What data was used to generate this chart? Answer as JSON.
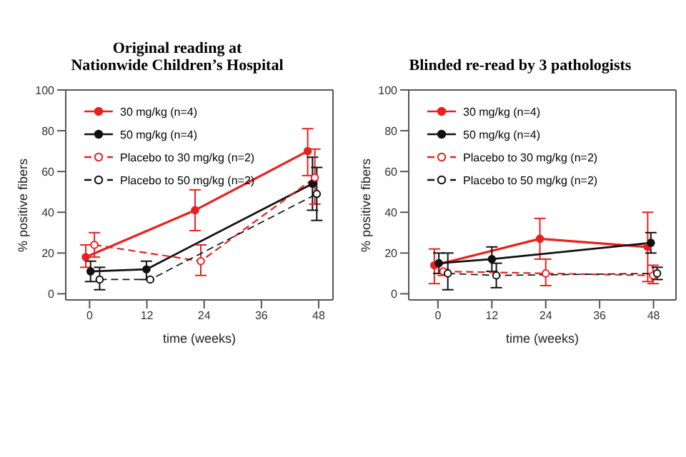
{
  "chart_data": [
    {
      "type": "line",
      "title": "Original reading at\nNationwide Children’s Hospital",
      "xlabel": "time (weeks)",
      "ylabel": "% positive fibers",
      "xlim": [
        -5,
        51
      ],
      "xticks": [
        0,
        12,
        24,
        36,
        48
      ],
      "ylim": [
        -3,
        100
      ],
      "yticks": [
        0,
        20,
        40,
        60,
        80,
        100
      ],
      "grid": false,
      "legend": "top left",
      "marker": "circle",
      "series": [
        {
          "name": "30 mg/kg (n=4)",
          "color": "#e8211f",
          "line_style": "solid",
          "x": [
            -0.8,
            22.1,
            45.7
          ],
          "values": [
            18,
            41,
            70
          ],
          "errors": [
            [
              13,
              24
            ],
            [
              31,
              51
            ],
            [
              58,
              81
            ]
          ]
        },
        {
          "name": "50 mg/kg (n=4)",
          "color": "#111111",
          "line_style": "solid",
          "x": [
            0.2,
            11.9,
            46.7
          ],
          "values": [
            11,
            12,
            54
          ],
          "errors": [
            [
              6,
              16
            ],
            [
              7,
              16
            ],
            [
              41,
              67
            ]
          ]
        },
        {
          "name": "Placebo to 30 mg/kg (n=2)",
          "color": "#e8211f",
          "line_style": "dashed",
          "x": [
            1,
            23.3,
            47.2
          ],
          "values": [
            24,
            16,
            57
          ],
          "errors": [
            [
              18,
              30
            ],
            [
              9,
              24
            ],
            [
              44,
              71
            ]
          ]
        },
        {
          "name": "Placebo to 50 mg/kg (n=2)",
          "color": "#111111",
          "line_style": "dashed",
          "x": [
            2.1,
            12.7,
            47.6
          ],
          "values": [
            7,
            7,
            49
          ],
          "errors": [
            [
              2,
              13
            ],
            null,
            [
              36,
              62
            ]
          ]
        }
      ]
    },
    {
      "type": "line",
      "title": "Blinded re-read by 3 pathologists",
      "xlabel": "time (weeks)",
      "ylabel": "% positive fibers",
      "xlim": [
        -6.5,
        53
      ],
      "xticks": [
        0,
        12,
        24,
        36,
        48
      ],
      "ylim": [
        -3,
        100
      ],
      "yticks": [
        0,
        20,
        40,
        60,
        80,
        100
      ],
      "grid": false,
      "legend": "top left",
      "marker": "circle",
      "series": [
        {
          "name": "30 mg/kg (n=4)",
          "color": "#e8211f",
          "line_style": "solid",
          "x": [
            -0.8,
            22.7,
            46.7
          ],
          "values": [
            14,
            27,
            23
          ],
          "errors": [
            [
              5,
              22
            ],
            [
              17,
              37
            ],
            [
              6,
              40
            ]
          ]
        },
        {
          "name": "50 mg/kg (n=4)",
          "color": "#111111",
          "line_style": "solid",
          "x": [
            0.2,
            12,
            47.4
          ],
          "values": [
            15,
            17,
            25
          ],
          "errors": [
            [
              10,
              20
            ],
            [
              11,
              23
            ],
            [
              20,
              30
            ]
          ]
        },
        {
          "name": "Placebo to 30 mg/kg (n=2)",
          "color": "#e8211f",
          "line_style": "dashed",
          "x": [
            1.2,
            24,
            47.9
          ],
          "values": [
            11,
            10,
            9
          ],
          "errors": [
            [
              9,
              12
            ],
            [
              4,
              17
            ],
            [
              5,
              14
            ]
          ]
        },
        {
          "name": "Placebo to 50 mg/kg (n=2)",
          "color": "#111111",
          "line_style": "dashed",
          "x": [
            2.2,
            13,
            48.8
          ],
          "values": [
            10,
            9,
            10
          ],
          "errors": [
            [
              2,
              20
            ],
            [
              3,
              15
            ],
            [
              7,
              13
            ]
          ]
        }
      ]
    }
  ]
}
